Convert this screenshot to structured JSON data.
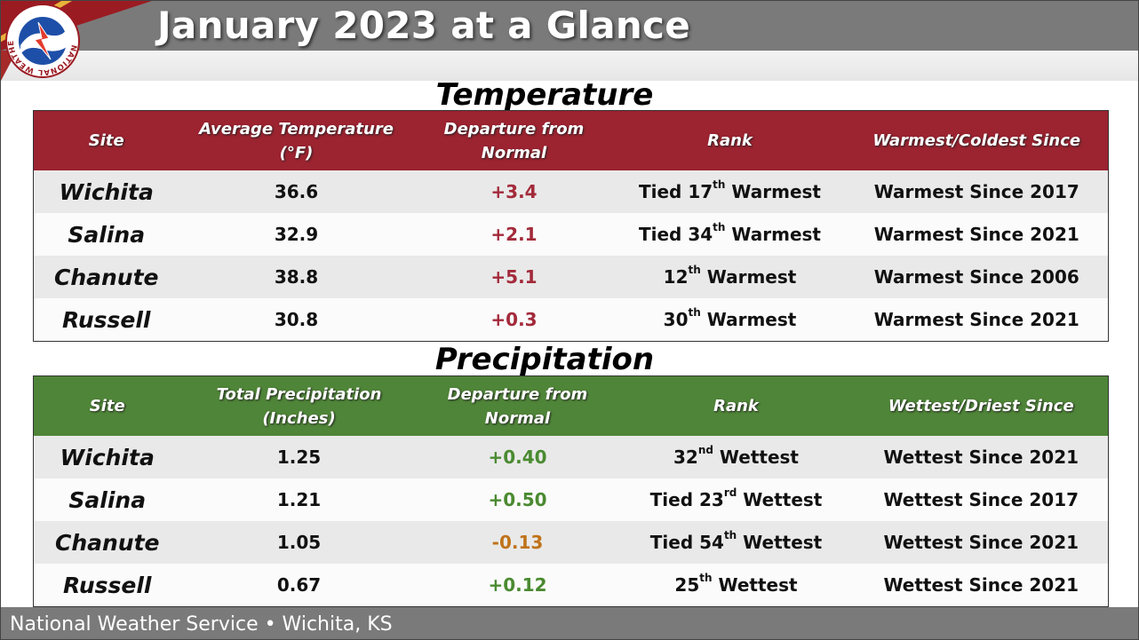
{
  "title": "January 2023 at a Glance",
  "logo": {
    "name": "nws-logo",
    "ring_text": "NATIONAL WEATHER SERVICE"
  },
  "colors": {
    "header_gray": "#7a7a7a",
    "temp_header": "#9c2330",
    "precip_header": "#4f8538",
    "positive_temp": "#a32a3a",
    "positive_precip": "#4a8a30",
    "negative_precip": "#c0731a"
  },
  "temperature": {
    "section_title": "Temperature",
    "headers": {
      "site": "Site",
      "avg_line1": "Average Temperature",
      "avg_line2": "(°F)",
      "dep_line1": "Departure from",
      "dep_line2": "Normal",
      "rank": "Rank",
      "since": "Warmest/Coldest Since"
    },
    "rows": [
      {
        "site": "Wichita",
        "value": "36.6",
        "departure": "+3.4",
        "rank_pre": "Tied 17",
        "rank_sup": "th",
        "rank_post": " Warmest",
        "since": "Warmest Since 2017"
      },
      {
        "site": "Salina",
        "value": "32.9",
        "departure": "+2.1",
        "rank_pre": "Tied 34",
        "rank_sup": "th",
        "rank_post": " Warmest",
        "since": "Warmest Since 2021"
      },
      {
        "site": "Chanute",
        "value": "38.8",
        "departure": "+5.1",
        "rank_pre": "12",
        "rank_sup": "th",
        "rank_post": " Warmest",
        "since": "Warmest Since 2006"
      },
      {
        "site": "Russell",
        "value": "30.8",
        "departure": "+0.3",
        "rank_pre": "30",
        "rank_sup": "th",
        "rank_post": " Warmest",
        "since": "Warmest Since 2021"
      }
    ]
  },
  "precipitation": {
    "section_title": "Precipitation",
    "headers": {
      "site": "Site",
      "total_line1": "Total Precipitation",
      "total_line2": "(Inches)",
      "dep_line1": "Departure from",
      "dep_line2": "Normal",
      "rank": "Rank",
      "since": "Wettest/Driest Since"
    },
    "rows": [
      {
        "site": "Wichita",
        "value": "1.25",
        "departure": "+0.40",
        "rank_pre": "32",
        "rank_sup": "nd",
        "rank_post": " Wettest",
        "since": "Wettest Since 2021"
      },
      {
        "site": "Salina",
        "value": "1.21",
        "departure": "+0.50",
        "rank_pre": "Tied 23",
        "rank_sup": "rd",
        "rank_post": " Wettest",
        "since": "Wettest Since 2017"
      },
      {
        "site": "Chanute",
        "value": "1.05",
        "departure": "-0.13",
        "rank_pre": "Tied 54",
        "rank_sup": "th",
        "rank_post": " Wettest",
        "since": "Wettest Since 2021"
      },
      {
        "site": "Russell",
        "value": "0.67",
        "departure": "+0.12",
        "rank_pre": "25",
        "rank_sup": "th",
        "rank_post": " Wettest",
        "since": "Wettest Since 2021"
      }
    ]
  },
  "footer": {
    "text": "National Weather Service • Wichita, KS"
  }
}
